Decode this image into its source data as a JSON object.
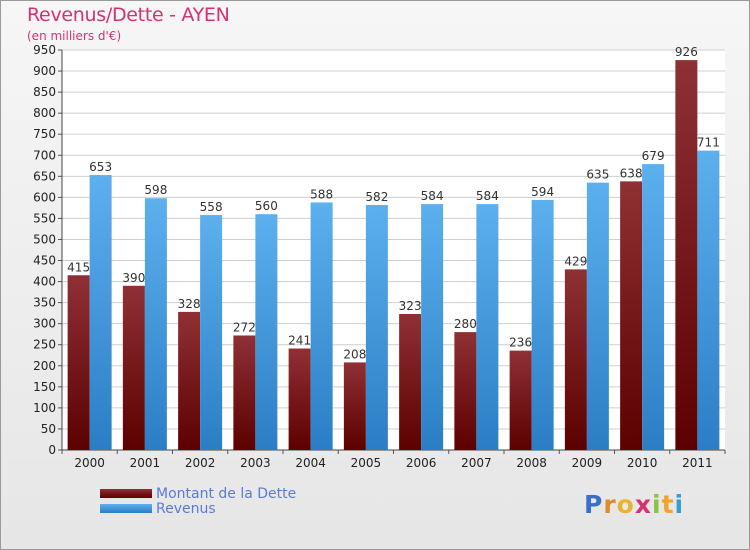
{
  "title": "Revenus/Dette - AYEN",
  "subtitle": "(en milliers d'€)",
  "colors": {
    "title": "#d43370",
    "debt_dark": "#5c0000",
    "debt_light": "#8f3035",
    "rev_dark": "#2b7ec4",
    "rev_light": "#5cb0ee"
  },
  "legend": {
    "debt_label": "Montant de la Dette",
    "revenue_label": "Revenus"
  },
  "logo": {
    "letters": [
      "P",
      "r",
      "o",
      "x",
      "i",
      "t",
      "i"
    ],
    "colors": [
      "#3a6fc9",
      "#e08a2c",
      "#e8b42b",
      "#d43370",
      "#8bc34a",
      "#f2a32b",
      "#3a9bd4"
    ]
  },
  "chart_data": {
    "type": "bar",
    "title": "Revenus/Dette - AYEN",
    "ylabel": "(en milliers d'€)",
    "ylim": [
      0,
      950
    ],
    "ytick_step": 50,
    "categories": [
      "2000",
      "2001",
      "2002",
      "2003",
      "2004",
      "2005",
      "2006",
      "2007",
      "2008",
      "2009",
      "2010",
      "2011"
    ],
    "series": [
      {
        "name": "Montant de la Dette",
        "values": [
          415,
          390,
          328,
          272,
          241,
          208,
          323,
          280,
          236,
          429,
          638,
          926
        ]
      },
      {
        "name": "Revenus",
        "values": [
          653,
          598,
          558,
          560,
          588,
          582,
          584,
          584,
          594,
          635,
          679,
          711
        ]
      }
    ]
  }
}
